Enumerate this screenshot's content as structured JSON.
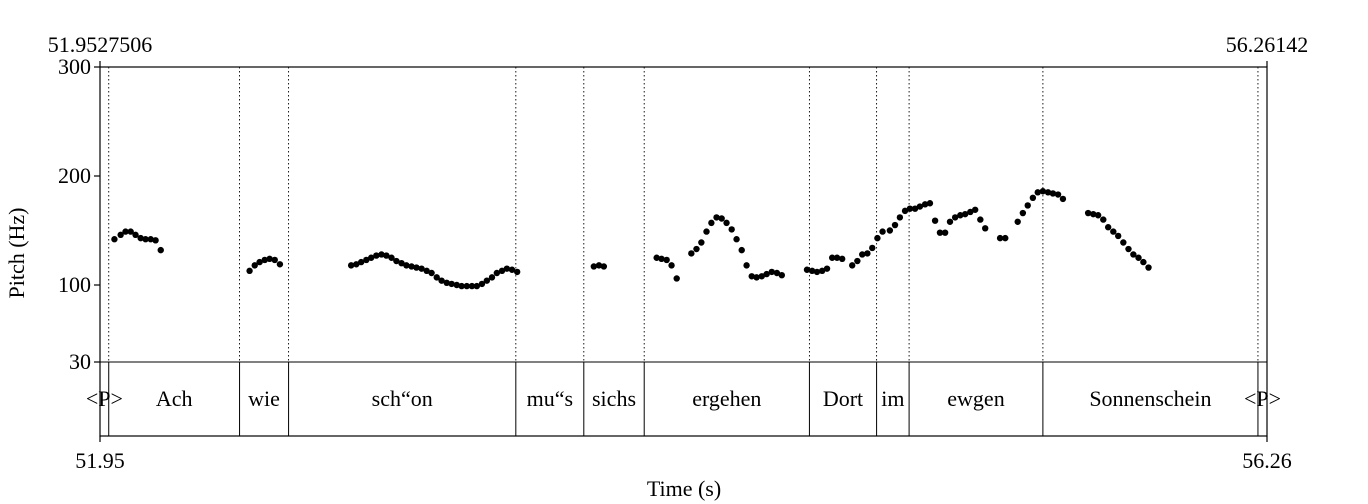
{
  "chart_data": {
    "type": "scatter",
    "title": "",
    "xlabel": "Time (s)",
    "ylabel": "Pitch (Hz)",
    "xlim": [
      51.9527506,
      56.26142
    ],
    "ylim": [
      30,
      300
    ],
    "x_top_left_label": "51.9527506",
    "x_top_right_label": "56.26142",
    "x_bottom_left_label": "51.95",
    "x_bottom_right_label": "56.26",
    "y_ticks": [
      {
        "value": 300,
        "label": "300"
      },
      {
        "value": 200,
        "label": "200"
      },
      {
        "value": 100,
        "label": "100"
      },
      {
        "value": 30,
        "label": "30"
      }
    ],
    "y_scale": "piecewise: 30 at tier boundary, 100-300 linear",
    "words": [
      {
        "label": "<P>",
        "start": 51.9527506,
        "end": 51.985
      },
      {
        "label": "Ach",
        "start": 51.985,
        "end": 52.468
      },
      {
        "label": "wie",
        "start": 52.468,
        "end": 52.649
      },
      {
        "label": "sch“on",
        "start": 52.649,
        "end": 53.488
      },
      {
        "label": "mu“s",
        "start": 53.488,
        "end": 53.739
      },
      {
        "label": "sichs",
        "start": 53.739,
        "end": 53.962
      },
      {
        "label": "ergehen",
        "start": 53.962,
        "end": 54.572
      },
      {
        "label": "Dort",
        "start": 54.572,
        "end": 54.82
      },
      {
        "label": "im",
        "start": 54.82,
        "end": 54.94
      },
      {
        "label": "ewgen",
        "start": 54.94,
        "end": 55.434
      },
      {
        "label": "Sonnenschein",
        "start": 55.434,
        "end": 56.228
      },
      {
        "label": "<P>",
        "start": 56.228,
        "end": 56.26142
      }
    ],
    "series": [
      {
        "name": "pitch",
        "points": [
          [
            52.006,
            142
          ],
          [
            52.029,
            146
          ],
          [
            52.047,
            149
          ],
          [
            52.066,
            149
          ],
          [
            52.084,
            146
          ],
          [
            52.103,
            143
          ],
          [
            52.121,
            142
          ],
          [
            52.14,
            142
          ],
          [
            52.158,
            141
          ],
          [
            52.177,
            132
          ],
          [
            52.505,
            113
          ],
          [
            52.524,
            118
          ],
          [
            52.542,
            121
          ],
          [
            52.561,
            123
          ],
          [
            52.579,
            124
          ],
          [
            52.598,
            123
          ],
          [
            52.617,
            119
          ],
          [
            52.88,
            118
          ],
          [
            52.899,
            119
          ],
          [
            52.917,
            121
          ],
          [
            52.936,
            123
          ],
          [
            52.954,
            125
          ],
          [
            52.973,
            127
          ],
          [
            52.992,
            128
          ],
          [
            53.01,
            127
          ],
          [
            53.029,
            125
          ],
          [
            53.047,
            122
          ],
          [
            53.066,
            120
          ],
          [
            53.084,
            118
          ],
          [
            53.103,
            117
          ],
          [
            53.121,
            116
          ],
          [
            53.14,
            115
          ],
          [
            53.159,
            113
          ],
          [
            53.177,
            111
          ],
          [
            53.196,
            107
          ],
          [
            53.214,
            104
          ],
          [
            53.233,
            102
          ],
          [
            53.251,
            101
          ],
          [
            53.27,
            100
          ],
          [
            53.288,
            99
          ],
          [
            53.307,
            99
          ],
          [
            53.326,
            99
          ],
          [
            53.344,
            99
          ],
          [
            53.363,
            101
          ],
          [
            53.381,
            104
          ],
          [
            53.4,
            107
          ],
          [
            53.418,
            111
          ],
          [
            53.437,
            113
          ],
          [
            53.455,
            115
          ],
          [
            53.474,
            114
          ],
          [
            53.493,
            112
          ],
          [
            53.776,
            117
          ],
          [
            53.795,
            118
          ],
          [
            53.813,
            117
          ],
          [
            54.008,
            125
          ],
          [
            54.026,
            124
          ],
          [
            54.045,
            123
          ],
          [
            54.063,
            118
          ],
          [
            54.082,
            106
          ],
          [
            54.136,
            129
          ],
          [
            54.155,
            133
          ],
          [
            54.173,
            139
          ],
          [
            54.192,
            149
          ],
          [
            54.21,
            157
          ],
          [
            54.229,
            162
          ],
          [
            54.248,
            161
          ],
          [
            54.266,
            157
          ],
          [
            54.285,
            151
          ],
          [
            54.303,
            142
          ],
          [
            54.322,
            132
          ],
          [
            54.34,
            118
          ],
          [
            54.359,
            108
          ],
          [
            54.377,
            107
          ],
          [
            54.396,
            108
          ],
          [
            54.414,
            110
          ],
          [
            54.433,
            112
          ],
          [
            54.452,
            111
          ],
          [
            54.47,
            109
          ],
          [
            54.563,
            114
          ],
          [
            54.582,
            113
          ],
          [
            54.6,
            112
          ],
          [
            54.619,
            113
          ],
          [
            54.637,
            115
          ],
          [
            54.656,
            125
          ],
          [
            54.674,
            125
          ],
          [
            54.693,
            124
          ],
          [
            54.73,
            118
          ],
          [
            54.749,
            122
          ],
          [
            54.767,
            128
          ],
          [
            54.786,
            129
          ],
          [
            54.804,
            134
          ],
          [
            54.823,
            143
          ],
          [
            54.842,
            149
          ],
          [
            54.869,
            150
          ],
          [
            54.888,
            155
          ],
          [
            54.906,
            162
          ],
          [
            54.925,
            168
          ],
          [
            54.943,
            170
          ],
          [
            54.962,
            170
          ],
          [
            54.98,
            172
          ],
          [
            54.999,
            174
          ],
          [
            55.017,
            175
          ],
          [
            55.036,
            159
          ],
          [
            55.054,
            148
          ],
          [
            55.073,
            148
          ],
          [
            55.091,
            158
          ],
          [
            55.11,
            162
          ],
          [
            55.129,
            164
          ],
          [
            55.147,
            165
          ],
          [
            55.166,
            167
          ],
          [
            55.184,
            169
          ],
          [
            55.203,
            160
          ],
          [
            55.221,
            152
          ],
          [
            55.276,
            143
          ],
          [
            55.295,
            143
          ],
          [
            55.341,
            158
          ],
          [
            55.36,
            166
          ],
          [
            55.378,
            173
          ],
          [
            55.397,
            180
          ],
          [
            55.415,
            185
          ],
          [
            55.434,
            186
          ],
          [
            55.453,
            185
          ],
          [
            55.471,
            184
          ],
          [
            55.49,
            183
          ],
          [
            55.508,
            179
          ],
          [
            55.601,
            166
          ],
          [
            55.62,
            165
          ],
          [
            55.638,
            164
          ],
          [
            55.657,
            160
          ],
          [
            55.675,
            153
          ],
          [
            55.694,
            149
          ],
          [
            55.712,
            145
          ],
          [
            55.731,
            139
          ],
          [
            55.75,
            133
          ],
          [
            55.768,
            128
          ],
          [
            55.787,
            125
          ],
          [
            55.805,
            121
          ],
          [
            55.824,
            116
          ]
        ]
      }
    ]
  }
}
